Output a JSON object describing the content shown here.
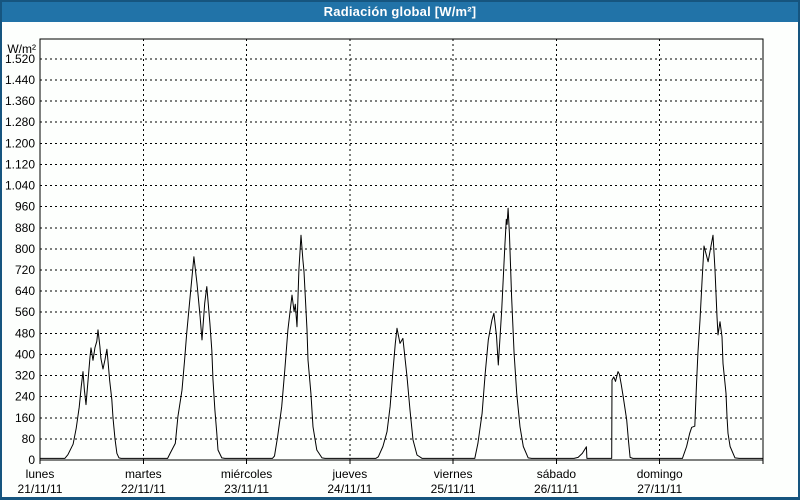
{
  "window": {
    "title": "Radiación global [W/m²]",
    "colors": {
      "titlebar_bg": "#2173a8",
      "titlebar_text": "#ffffff",
      "window_border": "#16557f",
      "background": "#fdfffd",
      "grid": "#000000",
      "curve": "#000000",
      "label_text": "#000000"
    }
  },
  "chart_data": {
    "type": "line",
    "title": "Radiación global [W/m²]",
    "ylabel": "W/m²",
    "xlabel": "",
    "ylim": [
      0,
      1595
    ],
    "ytick_step": 80,
    "ytick_values": [
      0,
      80,
      160,
      240,
      320,
      400,
      480,
      560,
      640,
      720,
      800,
      880,
      960,
      1040,
      1120,
      1200,
      1280,
      1360,
      1440,
      1520
    ],
    "ytick_labels": [
      "0",
      "80",
      "160",
      "240",
      "320",
      "400",
      "480",
      "560",
      "640",
      "720",
      "800",
      "880",
      "960",
      "1.040",
      "1.120",
      "1.200",
      "1.280",
      "1.360",
      "1.440",
      "1.520"
    ],
    "grid": "dashed",
    "legend": "none",
    "series_name": "Radiación global",
    "days": [
      {
        "name": "lunes",
        "date": "21/11/11",
        "points": [
          [
            0,
            6
          ],
          [
            0.24,
            6
          ],
          [
            0.27,
            20
          ],
          [
            0.32,
            60
          ],
          [
            0.35,
            120
          ],
          [
            0.38,
            200
          ],
          [
            0.4,
            280
          ],
          [
            0.416,
            335
          ],
          [
            0.43,
            265
          ],
          [
            0.445,
            210
          ],
          [
            0.465,
            300
          ],
          [
            0.484,
            390
          ],
          [
            0.494,
            425
          ],
          [
            0.513,
            378
          ],
          [
            0.532,
            425
          ],
          [
            0.55,
            450
          ],
          [
            0.562,
            493
          ],
          [
            0.58,
            430
          ],
          [
            0.59,
            385
          ],
          [
            0.61,
            345
          ],
          [
            0.63,
            382
          ],
          [
            0.648,
            420
          ],
          [
            0.658,
            375
          ],
          [
            0.675,
            300
          ],
          [
            0.695,
            230
          ],
          [
            0.707,
            160
          ],
          [
            0.726,
            80
          ],
          [
            0.745,
            25
          ],
          [
            0.765,
            8
          ],
          [
            0.785,
            6
          ],
          [
            1,
            6
          ]
        ]
      },
      {
        "name": "martes",
        "date": "22/11/11",
        "points": [
          [
            0,
            6
          ],
          [
            0.235,
            6
          ],
          [
            0.26,
            25
          ],
          [
            0.31,
            63
          ],
          [
            0.335,
            164
          ],
          [
            0.375,
            265
          ],
          [
            0.4,
            379
          ],
          [
            0.42,
            480
          ],
          [
            0.45,
            606
          ],
          [
            0.49,
            770
          ],
          [
            0.52,
            669
          ],
          [
            0.55,
            543
          ],
          [
            0.568,
            455
          ],
          [
            0.595,
            594
          ],
          [
            0.615,
            657
          ],
          [
            0.645,
            518
          ],
          [
            0.663,
            417
          ],
          [
            0.675,
            303
          ],
          [
            0.693,
            189
          ],
          [
            0.712,
            101
          ],
          [
            0.723,
            38
          ],
          [
            0.76,
            8
          ],
          [
            0.79,
            6
          ],
          [
            1,
            6
          ]
        ]
      },
      {
        "name": "miércoles",
        "date": "23/11/11",
        "points": [
          [
            0,
            6
          ],
          [
            0.25,
            6
          ],
          [
            0.27,
            15
          ],
          [
            0.3,
            88
          ],
          [
            0.34,
            202
          ],
          [
            0.37,
            341
          ],
          [
            0.4,
            493
          ],
          [
            0.44,
            625
          ],
          [
            0.46,
            562
          ],
          [
            0.472,
            590
          ],
          [
            0.488,
            505
          ],
          [
            0.507,
            720
          ],
          [
            0.527,
            852
          ],
          [
            0.545,
            758
          ],
          [
            0.556,
            714
          ],
          [
            0.585,
            493
          ],
          [
            0.595,
            379
          ],
          [
            0.623,
            253
          ],
          [
            0.643,
            126
          ],
          [
            0.68,
            38
          ],
          [
            0.73,
            8
          ],
          [
            0.76,
            6
          ],
          [
            1,
            6
          ]
        ]
      },
      {
        "name": "jueves",
        "date": "24/11/11",
        "points": [
          [
            0,
            6
          ],
          [
            0.25,
            6
          ],
          [
            0.275,
            12
          ],
          [
            0.32,
            51
          ],
          [
            0.36,
            107
          ],
          [
            0.39,
            202
          ],
          [
            0.417,
            335
          ],
          [
            0.44,
            442
          ],
          [
            0.456,
            499
          ],
          [
            0.485,
            442
          ],
          [
            0.514,
            461
          ],
          [
            0.553,
            316
          ],
          [
            0.582,
            189
          ],
          [
            0.611,
            76
          ],
          [
            0.65,
            19
          ],
          [
            0.7,
            6
          ],
          [
            1,
            6
          ]
        ]
      },
      {
        "name": "viernes",
        "date": "25/11/11",
        "points": [
          [
            0,
            6
          ],
          [
            0.21,
            6
          ],
          [
            0.24,
            63
          ],
          [
            0.28,
            177
          ],
          [
            0.31,
            328
          ],
          [
            0.34,
            455
          ],
          [
            0.375,
            530
          ],
          [
            0.395,
            556
          ],
          [
            0.42,
            470
          ],
          [
            0.437,
            360
          ],
          [
            0.47,
            568
          ],
          [
            0.5,
            808
          ],
          [
            0.515,
            912
          ],
          [
            0.522,
            893
          ],
          [
            0.532,
            954
          ],
          [
            0.545,
            860
          ],
          [
            0.566,
            619
          ],
          [
            0.59,
            404
          ],
          [
            0.615,
            253
          ],
          [
            0.647,
            126
          ],
          [
            0.679,
            51
          ],
          [
            0.727,
            8
          ],
          [
            0.76,
            6
          ],
          [
            1,
            6
          ]
        ]
      },
      {
        "name": "sábado",
        "date": "26/11/11",
        "points": [
          [
            0,
            6
          ],
          [
            0.17,
            6
          ],
          [
            0.21,
            10
          ],
          [
            0.25,
            25
          ],
          [
            0.29,
            50
          ],
          [
            0.295,
            6
          ],
          [
            0.535,
            6
          ],
          [
            0.538,
            303
          ],
          [
            0.555,
            315
          ],
          [
            0.572,
            298
          ],
          [
            0.596,
            335
          ],
          [
            0.61,
            325
          ],
          [
            0.628,
            285
          ],
          [
            0.648,
            235
          ],
          [
            0.68,
            152
          ],
          [
            0.697,
            76
          ],
          [
            0.713,
            10
          ],
          [
            0.74,
            6
          ],
          [
            1,
            6
          ]
        ]
      },
      {
        "name": "domingo",
        "date": "27/11/11",
        "points": [
          [
            0,
            6
          ],
          [
            0.22,
            6
          ],
          [
            0.26,
            51
          ],
          [
            0.29,
            101
          ],
          [
            0.31,
            124
          ],
          [
            0.34,
            128
          ],
          [
            0.355,
            278
          ],
          [
            0.37,
            404
          ],
          [
            0.39,
            530
          ],
          [
            0.41,
            682
          ],
          [
            0.429,
            811
          ],
          [
            0.468,
            751
          ],
          [
            0.516,
            852
          ],
          [
            0.535,
            720
          ],
          [
            0.555,
            543
          ],
          [
            0.564,
            474
          ],
          [
            0.584,
            524
          ],
          [
            0.603,
            467
          ],
          [
            0.613,
            366
          ],
          [
            0.642,
            253
          ],
          [
            0.651,
            164
          ],
          [
            0.661,
            101
          ],
          [
            0.681,
            51
          ],
          [
            0.729,
            8
          ],
          [
            0.77,
            6
          ],
          [
            1,
            6
          ]
        ]
      }
    ]
  }
}
